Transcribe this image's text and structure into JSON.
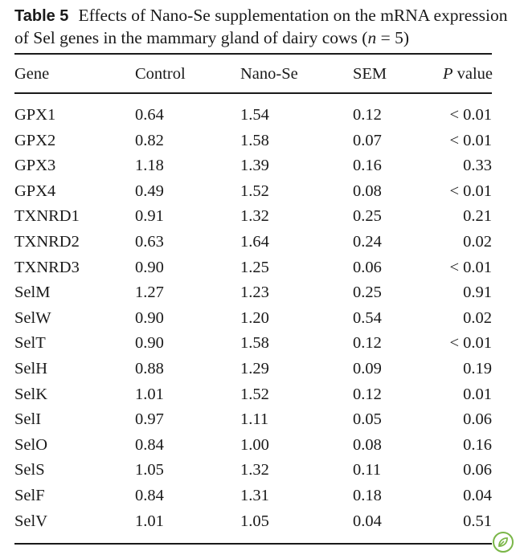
{
  "caption": {
    "label": "Table 5",
    "text_before_n": "Effects of Nano-Se supplementation on the mRNA expression of Sel genes in the mammary gland of dairy cows (",
    "n_symbol": "n",
    "n_value": " = 5)"
  },
  "table": {
    "headers": {
      "gene": "Gene",
      "control": "Control",
      "nano": "Nano-Se",
      "sem": "SEM",
      "p_symbol": "P",
      "p_word": " value"
    },
    "rows": [
      {
        "gene": "GPX1",
        "control": "0.64",
        "nano": "1.54",
        "sem": "0.12",
        "p": "< 0.01"
      },
      {
        "gene": "GPX2",
        "control": "0.82",
        "nano": "1.58",
        "sem": "0.07",
        "p": "< 0.01"
      },
      {
        "gene": "GPX3",
        "control": "1.18",
        "nano": "1.39",
        "sem": "0.16",
        "p": "0.33"
      },
      {
        "gene": "GPX4",
        "control": "0.49",
        "nano": "1.52",
        "sem": "0.08",
        "p": "< 0.01"
      },
      {
        "gene": "TXNRD1",
        "control": "0.91",
        "nano": "1.32",
        "sem": "0.25",
        "p": "0.21"
      },
      {
        "gene": "TXNRD2",
        "control": "0.63",
        "nano": "1.64",
        "sem": "0.24",
        "p": "0.02"
      },
      {
        "gene": "TXNRD3",
        "control": "0.90",
        "nano": "1.25",
        "sem": "0.06",
        "p": "< 0.01"
      },
      {
        "gene": "SelM",
        "control": "1.27",
        "nano": "1.23",
        "sem": "0.25",
        "p": "0.91"
      },
      {
        "gene": "SelW",
        "control": "0.90",
        "nano": "1.20",
        "sem": "0.54",
        "p": "0.02"
      },
      {
        "gene": "SelT",
        "control": "0.90",
        "nano": "1.58",
        "sem": "0.12",
        "p": "< 0.01"
      },
      {
        "gene": "SelH",
        "control": "0.88",
        "nano": "1.29",
        "sem": "0.09",
        "p": "0.19"
      },
      {
        "gene": "SelK",
        "control": "1.01",
        "nano": "1.52",
        "sem": "0.12",
        "p": "0.01"
      },
      {
        "gene": "SelI",
        "control": "0.97",
        "nano": "1.11",
        "sem": "0.05",
        "p": "0.06"
      },
      {
        "gene": "SelO",
        "control": "0.84",
        "nano": "1.00",
        "sem": "0.08",
        "p": "0.16"
      },
      {
        "gene": "SelS",
        "control": "1.05",
        "nano": "1.32",
        "sem": "0.11",
        "p": "0.06"
      },
      {
        "gene": "SelF",
        "control": "0.84",
        "nano": "1.31",
        "sem": "0.18",
        "p": "0.04"
      },
      {
        "gene": "SelV",
        "control": "1.01",
        "nano": "1.05",
        "sem": "0.04",
        "p": "0.51"
      }
    ]
  },
  "badge": {
    "icon": "leaf-icon",
    "color": "#7ab648"
  }
}
